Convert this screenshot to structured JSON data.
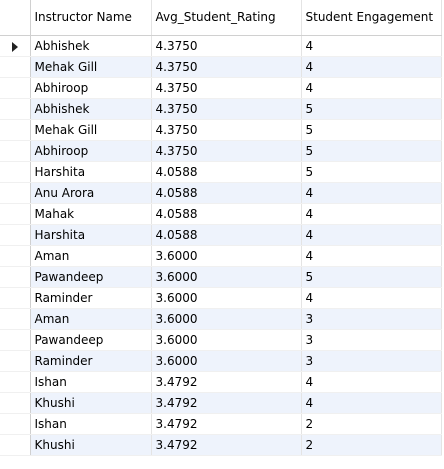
{
  "columns": {
    "instructor": "Instructor Name",
    "rating": "Avg_Student_Rating",
    "engagement": "Student Engagement"
  },
  "row_indicator_icon": "current-row-arrow-icon",
  "rows": [
    {
      "name": "Abhishek",
      "rating": "4.3750",
      "engagement": "4"
    },
    {
      "name": "Mehak Gill",
      "rating": "4.3750",
      "engagement": "4"
    },
    {
      "name": "Abhiroop",
      "rating": "4.3750",
      "engagement": "4"
    },
    {
      "name": "Abhishek",
      "rating": "4.3750",
      "engagement": "5"
    },
    {
      "name": "Mehak Gill",
      "rating": "4.3750",
      "engagement": "5"
    },
    {
      "name": "Abhiroop",
      "rating": "4.3750",
      "engagement": "5"
    },
    {
      "name": "Harshita",
      "rating": "4.0588",
      "engagement": "5"
    },
    {
      "name": "Anu Arora",
      "rating": "4.0588",
      "engagement": "4"
    },
    {
      "name": "Mahak",
      "rating": "4.0588",
      "engagement": "4"
    },
    {
      "name": "Harshita",
      "rating": "4.0588",
      "engagement": "4"
    },
    {
      "name": "Aman",
      "rating": "3.6000",
      "engagement": "4"
    },
    {
      "name": "Pawandeep",
      "rating": "3.6000",
      "engagement": "5"
    },
    {
      "name": "Raminder",
      "rating": "3.6000",
      "engagement": "4"
    },
    {
      "name": "Aman",
      "rating": "3.6000",
      "engagement": "3"
    },
    {
      "name": "Pawandeep",
      "rating": "3.6000",
      "engagement": "3"
    },
    {
      "name": "Raminder",
      "rating": "3.6000",
      "engagement": "3"
    },
    {
      "name": "Ishan",
      "rating": "3.4792",
      "engagement": "4"
    },
    {
      "name": "Khushi",
      "rating": "3.4792",
      "engagement": "4"
    },
    {
      "name": "Ishan",
      "rating": "3.4792",
      "engagement": "2"
    },
    {
      "name": "Khushi",
      "rating": "3.4792",
      "engagement": "2"
    }
  ]
}
